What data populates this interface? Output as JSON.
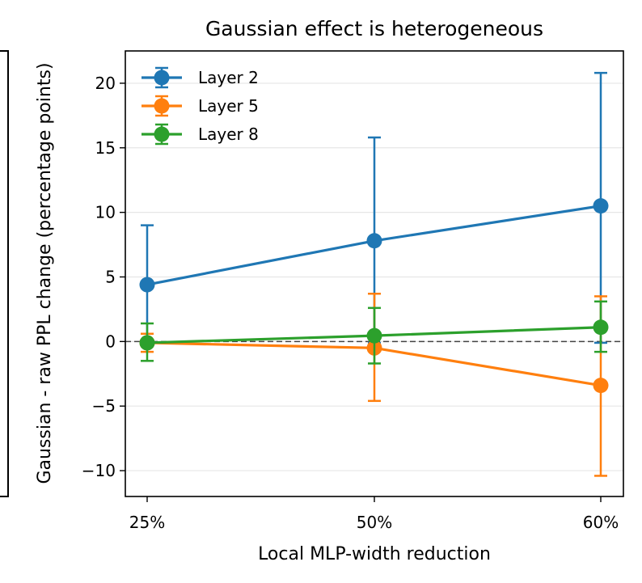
{
  "chart_data": {
    "type": "line",
    "title": "Gaussian effect is heterogeneous",
    "xlabel": "Local MLP-width reduction",
    "ylabel": "Gaussian - raw PPL change (percentage points)",
    "categories": [
      "25%",
      "50%",
      "60%"
    ],
    "ylim": [
      -12,
      22.5
    ],
    "yticks": [
      -10,
      -5,
      0,
      5,
      10,
      15,
      20
    ],
    "ytick_labels": [
      "−10",
      "−5",
      "0",
      "5",
      "10",
      "15",
      "20"
    ],
    "grid": "horizontal",
    "reference_line": 0,
    "legend_position": "top-left",
    "series": [
      {
        "name": "Layer 2",
        "color": "#1f77b4",
        "values": [
          4.4,
          7.8,
          10.5
        ],
        "err_low": [
          -0.1,
          -0.1,
          -0.1
        ],
        "err_high": [
          9.0,
          15.8,
          20.8
        ]
      },
      {
        "name": "Layer 5",
        "color": "#ff7f0e",
        "values": [
          -0.1,
          -0.5,
          -3.4
        ],
        "err_low": [
          -0.8,
          -4.6,
          -10.4
        ],
        "err_high": [
          0.6,
          3.7,
          3.5
        ]
      },
      {
        "name": "Layer 8",
        "color": "#2ca02c",
        "values": [
          -0.1,
          0.45,
          1.1
        ],
        "err_low": [
          -1.5,
          -1.7,
          -0.8
        ],
        "err_high": [
          1.4,
          2.6,
          3.1
        ]
      }
    ]
  }
}
